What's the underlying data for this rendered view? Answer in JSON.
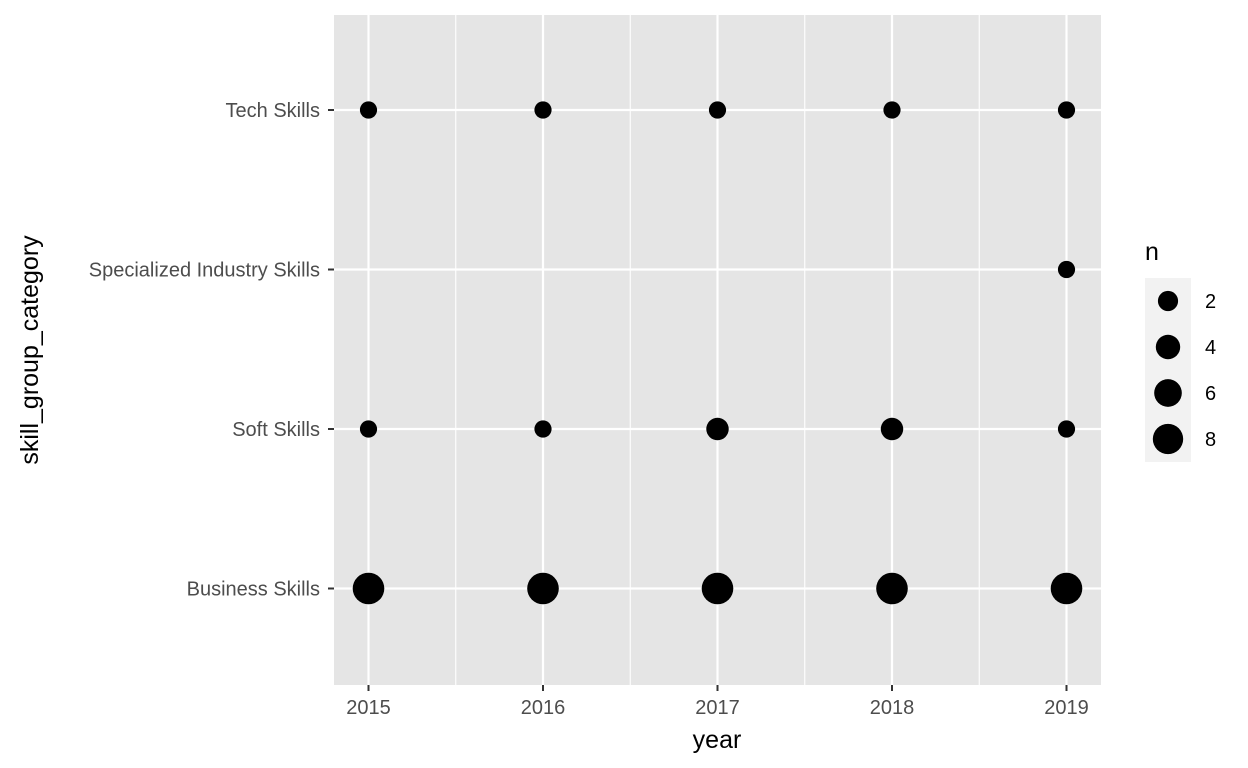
{
  "chart_data": {
    "type": "scatter",
    "title": "",
    "xlabel": "year",
    "ylabel": "skill_group_category",
    "x_categories": [
      "2015",
      "2016",
      "2017",
      "2018",
      "2019"
    ],
    "y_categories": [
      "Business Skills",
      "Soft Skills",
      "Specialized Industry Skills",
      "Tech Skills"
    ],
    "size_variable": "n",
    "points": [
      {
        "x": "2015",
        "y": "Tech Skills",
        "n": 1
      },
      {
        "x": "2016",
        "y": "Tech Skills",
        "n": 1
      },
      {
        "x": "2017",
        "y": "Tech Skills",
        "n": 1
      },
      {
        "x": "2018",
        "y": "Tech Skills",
        "n": 1
      },
      {
        "x": "2019",
        "y": "Tech Skills",
        "n": 1
      },
      {
        "x": "2019",
        "y": "Specialized Industry Skills",
        "n": 1
      },
      {
        "x": "2015",
        "y": "Soft Skills",
        "n": 1
      },
      {
        "x": "2016",
        "y": "Soft Skills",
        "n": 1
      },
      {
        "x": "2017",
        "y": "Soft Skills",
        "n": 3
      },
      {
        "x": "2018",
        "y": "Soft Skills",
        "n": 3
      },
      {
        "x": "2019",
        "y": "Soft Skills",
        "n": 1
      },
      {
        "x": "2015",
        "y": "Business Skills",
        "n": 9
      },
      {
        "x": "2016",
        "y": "Business Skills",
        "n": 9
      },
      {
        "x": "2017",
        "y": "Business Skills",
        "n": 9
      },
      {
        "x": "2018",
        "y": "Business Skills",
        "n": 9
      },
      {
        "x": "2019",
        "y": "Business Skills",
        "n": 9
      }
    ],
    "legend": {
      "title": "n",
      "position": "right",
      "breaks": [
        2,
        4,
        6,
        8
      ],
      "labels": [
        "2",
        "4",
        "6",
        "8"
      ]
    },
    "colors": {
      "panel_background": "#e5e5e5",
      "grid": "#ffffff",
      "point": "#000000"
    },
    "grid": true
  }
}
